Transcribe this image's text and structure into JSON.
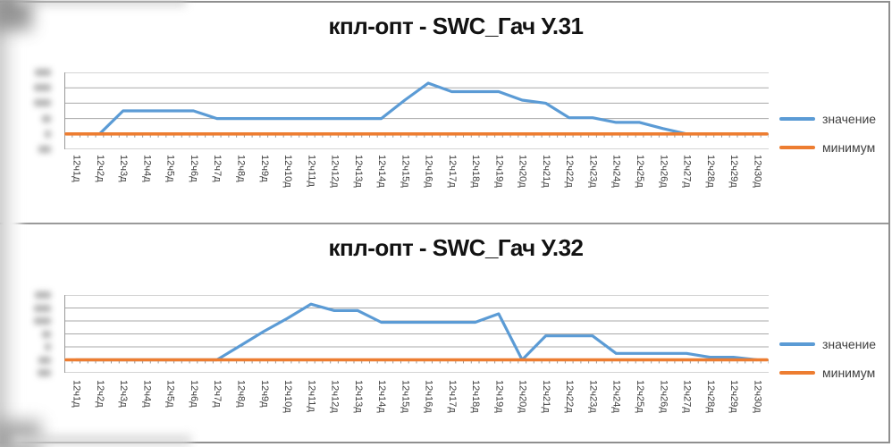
{
  "page": {
    "background": "#ffffff",
    "frame_border_color": "#8f8f8f",
    "gridline_color": "#a9a9a9",
    "redactions": {
      "y_axis_tick_labels": "blurred/unreadable in source",
      "left_edge": "blurred page edge"
    }
  },
  "chart_data": [
    {
      "type": "line",
      "title": "кпл-опт - SWC_Гач У.31",
      "xlabel": "",
      "ylabel": "",
      "ylim": [
        -1,
        4
      ],
      "grid": true,
      "legend_position": "right",
      "y_tick_labels": "redacted",
      "categories": [
        "12ч1д",
        "12ч2д",
        "12ч3д",
        "12ч4д",
        "12ч5д",
        "12ч6д",
        "12ч7д",
        "12ч8д",
        "12ч9д",
        "12ч10д",
        "12ч11д",
        "12ч12д",
        "12ч13д",
        "12ч14д",
        "12ч15д",
        "12ч16д",
        "12ч17д",
        "12ч18д",
        "12ч19д",
        "12ч20д",
        "12ч21д",
        "12ч22д",
        "12ч23д",
        "12ч24д",
        "12ч25д",
        "12ч26д",
        "12ч27д",
        "12ч28д",
        "12ч29д",
        "12ч30д"
      ],
      "series": [
        {
          "name": "значение",
          "color": "#5B9BD5",
          "values": [
            0,
            0,
            1.5,
            1.5,
            1.5,
            1.5,
            1,
            1,
            1,
            1,
            1,
            1,
            1,
            1,
            2.2,
            3.3,
            2.75,
            2.75,
            2.75,
            2.2,
            2,
            1.05,
            1.05,
            0.75,
            0.75,
            0.35,
            0,
            0,
            0,
            0
          ]
        },
        {
          "name": "минимум",
          "color": "#ED7D31",
          "values": [
            0,
            0,
            0,
            0,
            0,
            0,
            0,
            0,
            0,
            0,
            0,
            0,
            0,
            0,
            0,
            0,
            0,
            0,
            0,
            0,
            0,
            0,
            0,
            0,
            0,
            0,
            0,
            0,
            0,
            0
          ]
        }
      ]
    },
    {
      "type": "line",
      "title": "кпл-опт - SWC_Гач У.32",
      "xlabel": "",
      "ylabel": "",
      "ylim": [
        -1,
        5
      ],
      "grid": true,
      "legend_position": "right",
      "y_tick_labels": "redacted",
      "categories": [
        "12ч1д",
        "12ч2д",
        "12ч3д",
        "12ч4д",
        "12ч5д",
        "12ч6д",
        "12ч7д",
        "12ч8д",
        "12ч9д",
        "12ч10д",
        "12ч11д",
        "12ч12д",
        "12ч13д",
        "12ч14д",
        "12ч15д",
        "12ч16д",
        "12ч17д",
        "12ч18д",
        "12ч19д",
        "12ч20д",
        "12ч21д",
        "12ч22д",
        "12ч23д",
        "12ч24д",
        "12ч25д",
        "12ч26д",
        "12ч27д",
        "12ч28д",
        "12ч29д",
        "12ч30д"
      ],
      "series": [
        {
          "name": "значение",
          "color": "#5B9BD5",
          "values": [
            0,
            0,
            0,
            0,
            0,
            0,
            0,
            1.1,
            2.2,
            3.2,
            4.3,
            3.8,
            3.8,
            2.9,
            2.9,
            2.9,
            2.9,
            2.9,
            3.55,
            0,
            1.85,
            1.85,
            1.85,
            0.5,
            0.5,
            0.5,
            0.5,
            0.2,
            0.2,
            0
          ]
        },
        {
          "name": "минимум",
          "color": "#ED7D31",
          "values": [
            0,
            0,
            0,
            0,
            0,
            0,
            0,
            0,
            0,
            0,
            0,
            0,
            0,
            0,
            0,
            0,
            0,
            0,
            0,
            0,
            0,
            0,
            0,
            0,
            0,
            0,
            0,
            0,
            0,
            0
          ]
        }
      ]
    }
  ]
}
